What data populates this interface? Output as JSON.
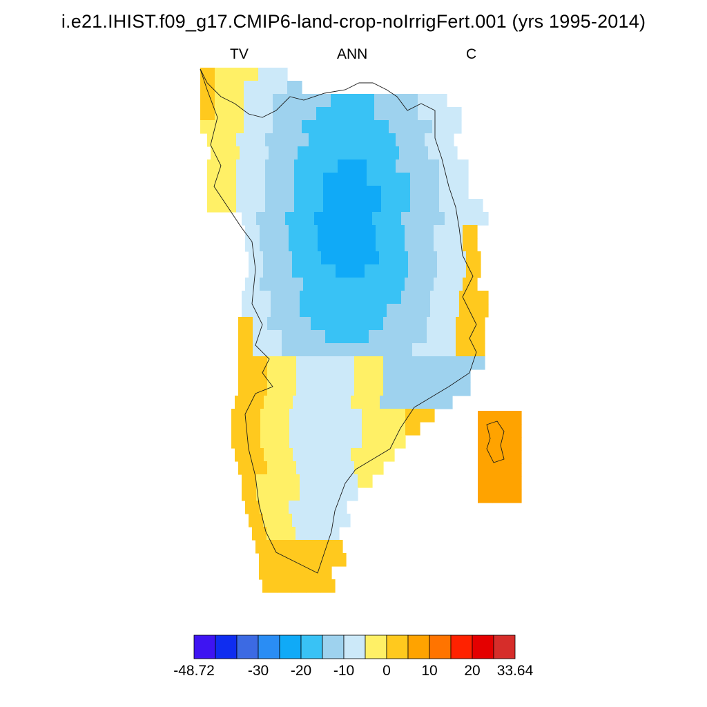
{
  "title": "i.e21.IHIST.f09_g17.CMIP6-land-crop-noIrrigFert.001 (yrs 1995-2014)",
  "subtitle_left": "TV",
  "subtitle_center": "ANN",
  "subtitle_right": "C",
  "colorbar": {
    "colors": [
      "#3e14f2",
      "#0f2df0",
      "#3c6ae3",
      "#2a8df4",
      "#10aaf7",
      "#39c2f5",
      "#9ed2ee",
      "#cce9f9",
      "#fff066",
      "#ffc91e",
      "#ffa300",
      "#ff7400",
      "#ff2200",
      "#e40000",
      "#d62d2a"
    ],
    "tick_labels": [
      "-48.72",
      "-30",
      "-20",
      "-10",
      "0",
      "10",
      "20",
      "33.64"
    ]
  },
  "chart_data": {
    "type": "heatmap",
    "variable": "TV",
    "period": "ANN",
    "units": "C",
    "range": [
      -48.72,
      33.64
    ],
    "region_values_approx": {
      "central_north_ice_sheet": -25,
      "east_central": -20,
      "south_dome": -8,
      "west_coast_south": 2,
      "southern_tip": 4,
      "east_island_patch": 5
    }
  }
}
